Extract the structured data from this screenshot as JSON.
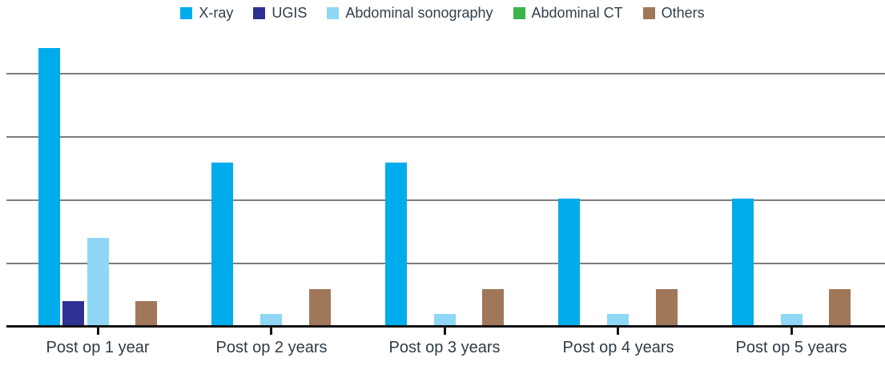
{
  "figure": {
    "background": "#ffffff",
    "text_color": "#2e3b46",
    "gridline_color": "#7d7d7d",
    "axis_color": "#111111"
  },
  "legend": {
    "position": "top",
    "items": [
      {
        "label": "X-ray",
        "color": "#00aceb",
        "icon": "square-swatch-icon"
      },
      {
        "label": "UGIS",
        "color": "#2e3192",
        "icon": "square-swatch-icon"
      },
      {
        "label": "Abdominal sonography",
        "color": "#8fd7f4",
        "icon": "square-swatch-icon"
      },
      {
        "label": "Abdominal CT",
        "color": "#39b54a",
        "icon": "square-swatch-icon"
      },
      {
        "label": "Others",
        "color": "#a1775a",
        "icon": "square-swatch-icon"
      }
    ]
  },
  "chart_data": {
    "type": "bar",
    "title": "",
    "xlabel": "",
    "ylabel": "",
    "categories": [
      "Post op 1 year",
      "Post op 2 years",
      "Post op 3 years",
      "Post op 4 years",
      "Post op 5 years"
    ],
    "series": [
      {
        "name": "X-ray",
        "color": "#00aceb",
        "values": [
          87.5,
          51.5,
          51.5,
          40,
          40
        ]
      },
      {
        "name": "UGIS",
        "color": "#2e3192",
        "values": [
          7.5,
          0,
          0,
          0,
          0
        ]
      },
      {
        "name": "Abdominal sonography",
        "color": "#8fd7f4",
        "values": [
          27.5,
          3.5,
          3.5,
          3.5,
          3.5
        ]
      },
      {
        "name": "Abdominal CT",
        "color": "#39b54a",
        "values": [
          0,
          0,
          0,
          0,
          0
        ]
      },
      {
        "name": "Others",
        "color": "#a1775a",
        "values": [
          7.5,
          11.5,
          11.5,
          11.5,
          11.5
        ]
      }
    ],
    "ylim": [
      0,
      100
    ],
    "gridline_values": [
      20,
      40,
      60,
      80
    ],
    "y_tick_labels_visible": false,
    "grid": true,
    "legend_position": "top",
    "value_scale_note": "No y-axis tick labels are rendered; values estimated from gridlines with one gridline interval = 20 units."
  }
}
